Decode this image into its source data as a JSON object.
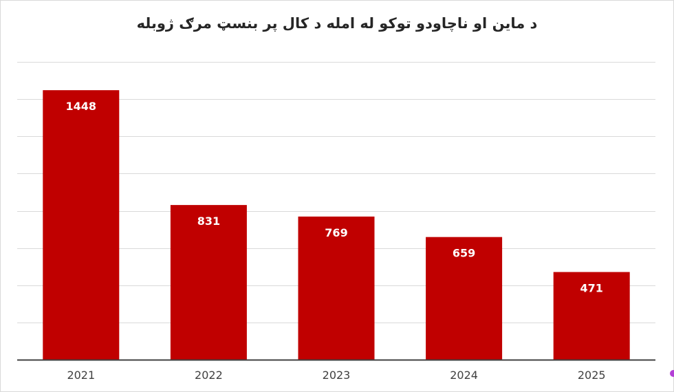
{
  "chart_data": {
    "type": "bar",
    "title": "د ماین او ناچاودو توکو له امله د کال پر بنسټ مرګ ژوبله",
    "categories": [
      "2021",
      "2022",
      "2023",
      "2024",
      "2025"
    ],
    "values": [
      1448,
      831,
      769,
      659,
      471
    ],
    "ylim": [
      0,
      1600
    ],
    "grid": true,
    "legend": "none",
    "bar_color": "#c00000",
    "gridline_color": "#d9d9d9",
    "axis_color": "#404040"
  }
}
